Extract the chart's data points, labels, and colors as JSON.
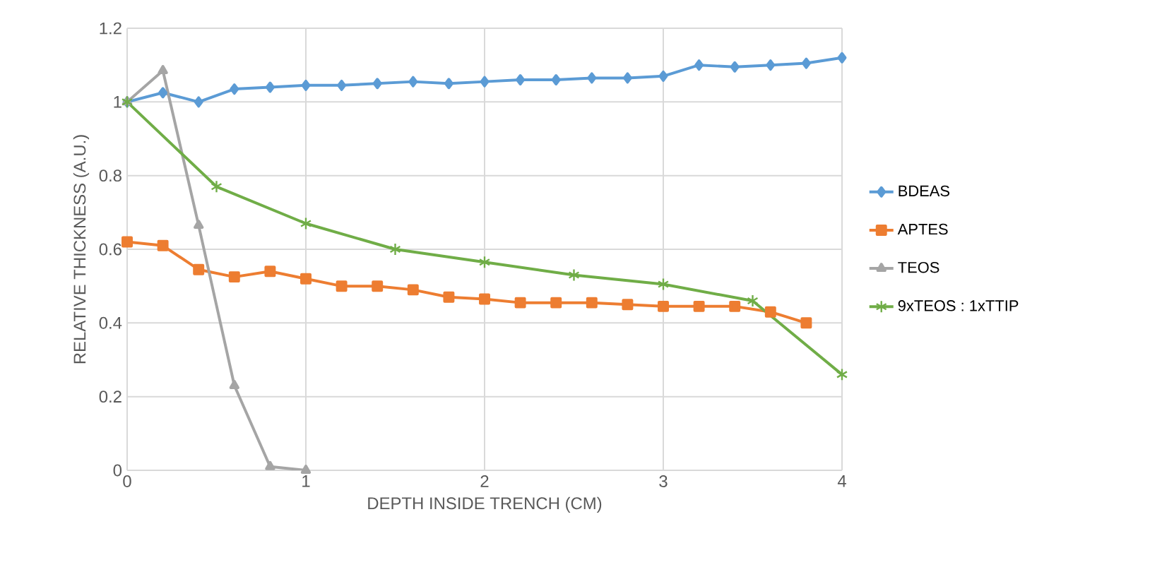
{
  "chart_data": {
    "type": "line",
    "xlabel": "DEPTH INSIDE TRENCH (CM)",
    "ylabel": "RELATIVE THICKNESS (A.U.)",
    "xlim": [
      0,
      4
    ],
    "xticks": [
      0,
      1,
      2,
      3,
      4
    ],
    "ylim": [
      0,
      1.2
    ],
    "yticks": [
      0,
      {
        "value": 0.2,
        "label": "0.2"
      },
      {
        "value": 0.4,
        "label": "0.4"
      },
      {
        "value": 0.6,
        "label": "0.6"
      },
      {
        "value": 0.8,
        "label": "0.8"
      },
      1,
      {
        "value": 1.2,
        "label": "1.2"
      }
    ],
    "grid": true,
    "legend": "right",
    "line_style": "solid",
    "series": [
      {
        "name": "BDEAS",
        "color": "#5b9bd5",
        "marker": "diamond",
        "x": [
          0,
          0.2,
          0.4,
          0.6,
          0.8,
          1.0,
          1.2,
          1.4,
          1.6,
          1.8,
          2.0,
          2.2,
          2.4,
          2.6,
          2.8,
          3.0,
          3.2,
          3.4,
          3.6,
          3.8,
          4.0
        ],
        "values": [
          1.0,
          1.025,
          1.0,
          1.035,
          1.04,
          1.045,
          1.045,
          1.05,
          1.055,
          1.05,
          1.055,
          1.06,
          1.06,
          1.065,
          1.065,
          1.07,
          1.1,
          1.095,
          1.1,
          1.105,
          1.12
        ]
      },
      {
        "name": "APTES",
        "color": "#ed7d31",
        "marker": "square",
        "x": [
          0,
          0.2,
          0.4,
          0.6,
          0.8,
          1.0,
          1.2,
          1.4,
          1.6,
          1.8,
          2.0,
          2.2,
          2.4,
          2.6,
          2.8,
          3.0,
          3.2,
          3.4,
          3.6,
          3.8
        ],
        "values": [
          0.62,
          0.61,
          0.545,
          0.525,
          0.54,
          0.52,
          0.5,
          0.5,
          0.49,
          0.47,
          0.465,
          0.455,
          0.455,
          0.455,
          0.45,
          0.445,
          0.445,
          0.445,
          0.43,
          0.4
        ]
      },
      {
        "name": "TEOS",
        "color": "#a5a5a5",
        "marker": "triangle",
        "x": [
          0,
          0.2,
          0.4,
          0.6,
          0.8,
          1.0
        ],
        "values": [
          1.0,
          1.085,
          0.665,
          0.23,
          0.01,
          0.0
        ]
      },
      {
        "name": "9xTEOS : 1xTTIP",
        "color": "#70ad47",
        "marker": "cross",
        "x": [
          0,
          0.5,
          1,
          1.5,
          2,
          2.5,
          3,
          3.5,
          4
        ],
        "values": [
          1.0,
          0.77,
          0.67,
          0.6,
          0.565,
          0.53,
          0.505,
          0.46,
          0.26
        ]
      }
    ]
  }
}
